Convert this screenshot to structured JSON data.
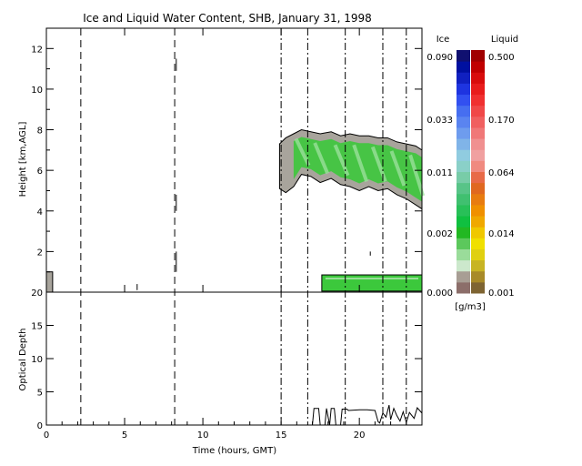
{
  "chart_data": [
    {
      "type": "heatmap",
      "title": "Ice and Liquid Water Content, SHB, January 31, 1998",
      "xlabel": "",
      "ylabel": "Height [km,AGL]",
      "xlim": [
        0,
        24
      ],
      "ylim": [
        0,
        13
      ],
      "x_ticks": [
        "0",
        "5",
        "10",
        "15",
        "20"
      ],
      "y_ticks": [
        "2",
        "4",
        "6",
        "8",
        "10",
        "12"
      ],
      "dashed_lines_x": [
        2.2,
        8.2,
        15.0,
        16.7,
        19.1,
        21.5,
        23.0
      ],
      "dashdot_lines_x": [
        15.0,
        16.7,
        19.1,
        21.5,
        23.0
      ],
      "upper_cloud": {
        "x": [
          14.9,
          15.3,
          15.8,
          16.3,
          16.9,
          17.5,
          18.2,
          18.8,
          19.4,
          20.0,
          20.6,
          21.2,
          21.8,
          22.4,
          23.0,
          23.6,
          24.0
        ],
        "top": [
          7.3,
          7.6,
          7.8,
          8.0,
          7.9,
          7.8,
          7.9,
          7.7,
          7.8,
          7.7,
          7.7,
          7.6,
          7.6,
          7.4,
          7.3,
          7.2,
          7.0
        ],
        "base": [
          5.1,
          4.9,
          5.2,
          5.8,
          5.7,
          5.4,
          5.6,
          5.3,
          5.2,
          5.0,
          5.2,
          5.0,
          5.1,
          4.8,
          4.6,
          4.3,
          4.1
        ]
      },
      "lower_cloud": {
        "x_start": 17.6,
        "x_end": 24.0,
        "base": 0.05,
        "top": 0.85
      },
      "left_cloud": {
        "x_start": 0.0,
        "x_end": 0.4,
        "base": 0.0,
        "top": 1.0
      },
      "vertical_streaks": [
        {
          "x": 8.3,
          "y0": 10.9,
          "y1": 11.5
        },
        {
          "x": 8.3,
          "y0": 4.0,
          "y1": 4.8
        },
        {
          "x": 8.3,
          "y0": 1.0,
          "y1": 2.0
        },
        {
          "x": 5.8,
          "y0": 0.1,
          "y1": 0.4
        },
        {
          "x": 20.7,
          "y0": 1.8,
          "y1": 2.0
        }
      ]
    },
    {
      "type": "line",
      "title": "",
      "xlabel": "Time (hours, GMT)",
      "ylabel": "Optical Depth",
      "xlim": [
        0,
        24
      ],
      "ylim": [
        0,
        20
      ],
      "x_ticks": [
        "0",
        "5",
        "10",
        "15",
        "20"
      ],
      "y_ticks": [
        "0",
        "5",
        "10",
        "15",
        "20"
      ],
      "series": [
        {
          "x": [
            0,
            17.0,
            17.1,
            17.4,
            17.5,
            17.8,
            17.9,
            18.1,
            18.2,
            18.4,
            18.5,
            18.8,
            18.9,
            19.2,
            19.3,
            20.0,
            20.5,
            21.0,
            21.2,
            21.3,
            21.5,
            21.7,
            21.9,
            22.0,
            22.2,
            22.4,
            22.6,
            22.8,
            23.0,
            23.2,
            23.5,
            23.7,
            24.0
          ],
          "y": [
            0,
            0,
            2.5,
            2.5,
            0,
            0,
            2.5,
            0,
            2.5,
            2.5,
            0,
            0,
            2.4,
            2.4,
            2.2,
            2.3,
            2.3,
            2.2,
            0.5,
            0.3,
            1.8,
            1.2,
            3.0,
            0.8,
            2.5,
            1.4,
            0.6,
            2.0,
            0.4,
            1.9,
            1.0,
            2.6,
            1.8
          ]
        }
      ]
    }
  ],
  "legend": {
    "ice_header": "Ice",
    "liquid_header": "Liquid",
    "ice_labels": [
      "0.090",
      "0.033",
      "0.011",
      "0.002",
      "0.000"
    ],
    "liquid_labels": [
      "0.500",
      "0.170",
      "0.064",
      "0.014",
      "0.001"
    ],
    "units": "[g/m3]",
    "ice_colors": [
      "#8c6e6a",
      "#a89e94",
      "#cce8cc",
      "#9adc9a",
      "#5cc85c",
      "#22b822",
      "#10c040",
      "#28c058",
      "#40c070",
      "#58c488",
      "#78cca8",
      "#8ad0c8",
      "#90cce0",
      "#80b4e8",
      "#6e9cee",
      "#5a84f0",
      "#466ef0",
      "#3250f0",
      "#1e34e0",
      "#1020c0",
      "#0010a0",
      "#101070"
    ],
    "liquid_colors": [
      "#7e6432",
      "#a88a28",
      "#c8b424",
      "#e0d010",
      "#f0e000",
      "#f0c800",
      "#f0a800",
      "#f09000",
      "#e87c10",
      "#e06820",
      "#e86a48",
      "#f08a80",
      "#f0a0a0",
      "#f09090",
      "#f07878",
      "#f06060",
      "#f04848",
      "#f03030",
      "#e81c1c",
      "#d80c0c",
      "#c00000",
      "#a00000"
    ]
  }
}
